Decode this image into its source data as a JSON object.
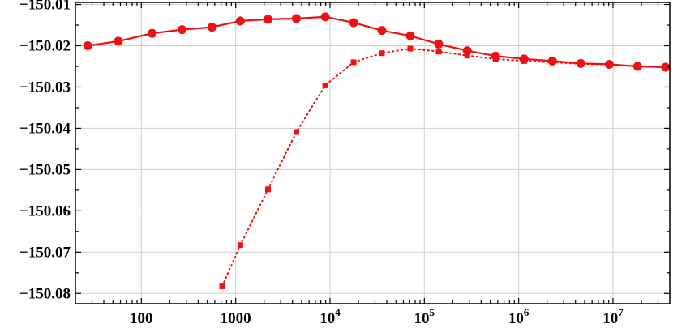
{
  "chart_data": {
    "type": "line",
    "x_scale": "log",
    "xlim": [
      20,
      40000000
    ],
    "ylim": [
      -150.0825,
      -150.0095
    ],
    "grid": true,
    "colors": {
      "series": "#ee1111",
      "grid": "#cfcfcf",
      "frame": "#000000"
    },
    "x_ticks": [
      {
        "value": 100,
        "label": "100"
      },
      {
        "value": 1000,
        "label": "1000"
      },
      {
        "value": 10000,
        "base": "10",
        "exp": "4"
      },
      {
        "value": 100000,
        "base": "10",
        "exp": "5"
      },
      {
        "value": 1000000,
        "base": "10",
        "exp": "6"
      },
      {
        "value": 10000000,
        "base": "10",
        "exp": "7"
      }
    ],
    "y_ticks": [
      {
        "value": -150.01,
        "label": "−150.01"
      },
      {
        "value": -150.02,
        "label": "−150.02"
      },
      {
        "value": -150.03,
        "label": "−150.03"
      },
      {
        "value": -150.04,
        "label": "−150.04"
      },
      {
        "value": -150.05,
        "label": "−150.05"
      },
      {
        "value": -150.06,
        "label": "−150.06"
      },
      {
        "value": -150.07,
        "label": "−150.07"
      },
      {
        "value": -150.08,
        "label": "−150.08"
      }
    ],
    "series": [
      {
        "marker": "circle",
        "line_style": "solid",
        "x": [
          27,
          57,
          130,
          270,
          560,
          1120,
          2200,
          4400,
          8900,
          17800,
          35500,
          71000,
          142000,
          285000,
          570000,
          1140000,
          2280000,
          4560000,
          9120000,
          18240000,
          36000000
        ],
        "y": [
          -150.02,
          -150.0189,
          -150.017,
          -150.0161,
          -150.0155,
          -150.014,
          -150.0136,
          -150.0134,
          -150.013,
          -150.0144,
          -150.0163,
          -150.0176,
          -150.0196,
          -150.0212,
          -150.0225,
          -150.0232,
          -150.0237,
          -150.0243,
          -150.0245,
          -150.025,
          -150.0252
        ]
      },
      {
        "marker": "square",
        "line_style": "dotted",
        "x": [
          720,
          1120,
          2200,
          4400,
          8900,
          17800,
          35500,
          71000,
          142000,
          285000,
          570000,
          1140000,
          2280000,
          4560000,
          9120000,
          18240000,
          36000000
        ],
        "y": [
          -150.0783,
          -150.0683,
          -150.0548,
          -150.0409,
          -150.0296,
          -150.024,
          -150.0218,
          -150.0207,
          -150.0214,
          -150.0224,
          -150.0232,
          -150.0237,
          -150.024,
          -150.0244,
          -150.0246,
          -150.025,
          -150.0252
        ]
      }
    ]
  }
}
